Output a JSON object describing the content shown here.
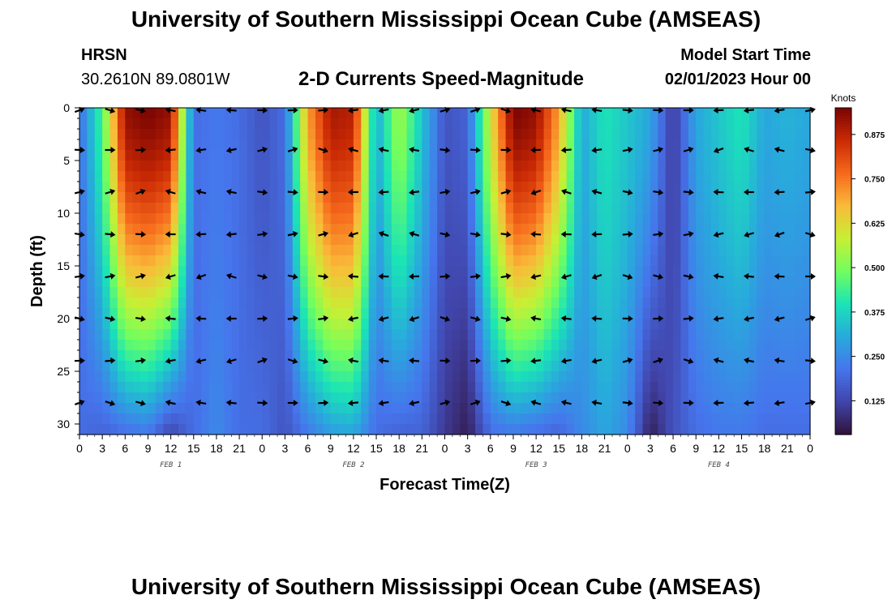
{
  "header": {
    "title": "University of Southern Mississippi Ocean Cube (AMSEAS)",
    "station": "HRSN",
    "coords": "30.2610N  89.0801W",
    "plot_title": "2-D Currents Speed-Magnitude",
    "model_start_label": "Model Start Time",
    "model_start_value": "02/01/2023 Hour 00"
  },
  "footer": {
    "title": "University of Southern Mississippi Ocean Cube (AMSEAS)"
  },
  "chart_data": {
    "type": "heatmap",
    "title": "2-D Currents Speed-Magnitude",
    "xlabel": "Forecast Time(Z)",
    "ylabel": "Depth (ft)",
    "xlim": [
      0,
      96
    ],
    "ylim": [
      31,
      0
    ],
    "x_ticks": [
      0,
      3,
      6,
      9,
      12,
      15,
      18,
      21,
      24,
      27,
      30,
      33,
      36,
      39,
      42,
      45,
      48,
      51,
      54,
      57,
      60,
      63,
      66,
      69,
      72,
      75,
      78,
      81,
      84,
      87,
      90,
      93,
      96
    ],
    "x_tick_labels": [
      "0",
      "3",
      "6",
      "9",
      "12",
      "15",
      "18",
      "21",
      "0",
      "3",
      "6",
      "9",
      "12",
      "15",
      "18",
      "21",
      "0",
      "3",
      "6",
      "9",
      "12",
      "15",
      "18",
      "21",
      "0",
      "3",
      "6",
      "9",
      "12",
      "15",
      "18",
      "21",
      "0"
    ],
    "y_ticks": [
      0,
      5,
      10,
      15,
      20,
      25,
      30
    ],
    "y_tick_labels": [
      "0",
      "5",
      "10",
      "15",
      "20",
      "25",
      "30"
    ],
    "date_labels": [
      {
        "hour": 12,
        "label": "FEB 1"
      },
      {
        "hour": 36,
        "label": "FEB 2"
      },
      {
        "hour": 60,
        "label": "FEB 3"
      },
      {
        "hour": 84,
        "label": "FEB 4"
      }
    ],
    "colorbar": {
      "unit_label": "Knots",
      "range": [
        0.03,
        0.95
      ],
      "ticks": [
        0.125,
        0.25,
        0.375,
        0.5,
        0.625,
        0.75,
        0.875
      ],
      "tick_labels": [
        "0.125",
        "0.250",
        "0.375",
        "0.500",
        "0.625",
        "0.750",
        "0.875"
      ]
    },
    "depth_levels_ft": [
      0,
      4,
      8,
      12,
      16,
      20,
      24,
      28
    ],
    "speed_knots_by_time": {
      "hours": [
        0,
        3,
        6,
        9,
        12,
        15,
        18,
        21,
        24,
        27,
        30,
        33,
        36,
        39,
        42,
        45,
        48,
        51,
        54,
        57,
        60,
        63,
        66,
        69,
        72,
        75,
        78,
        81,
        84,
        87,
        90,
        93,
        96
      ],
      "surface": [
        0.2,
        0.45,
        0.92,
        0.95,
        0.92,
        0.2,
        0.22,
        0.2,
        0.15,
        0.2,
        0.7,
        0.9,
        0.88,
        0.3,
        0.55,
        0.35,
        0.15,
        0.18,
        0.6,
        0.95,
        0.92,
        0.7,
        0.3,
        0.4,
        0.35,
        0.3,
        0.1,
        0.3,
        0.35,
        0.4,
        0.3,
        0.32,
        0.3
      ],
      "bottom": [
        0.2,
        0.18,
        0.2,
        0.22,
        0.12,
        0.2,
        0.25,
        0.2,
        0.2,
        0.15,
        0.22,
        0.28,
        0.3,
        0.2,
        0.18,
        0.18,
        0.1,
        0.05,
        0.2,
        0.22,
        0.2,
        0.18,
        0.25,
        0.3,
        0.25,
        0.05,
        0.15,
        0.2,
        0.22,
        0.22,
        0.2,
        0.2,
        0.2
      ]
    },
    "arrow_columns_hours": [
      0,
      4,
      8,
      12,
      16,
      20,
      24,
      28,
      32,
      36,
      40,
      44,
      48,
      52,
      56,
      60,
      64,
      68,
      72,
      76,
      80,
      84,
      88,
      92,
      96
    ]
  }
}
